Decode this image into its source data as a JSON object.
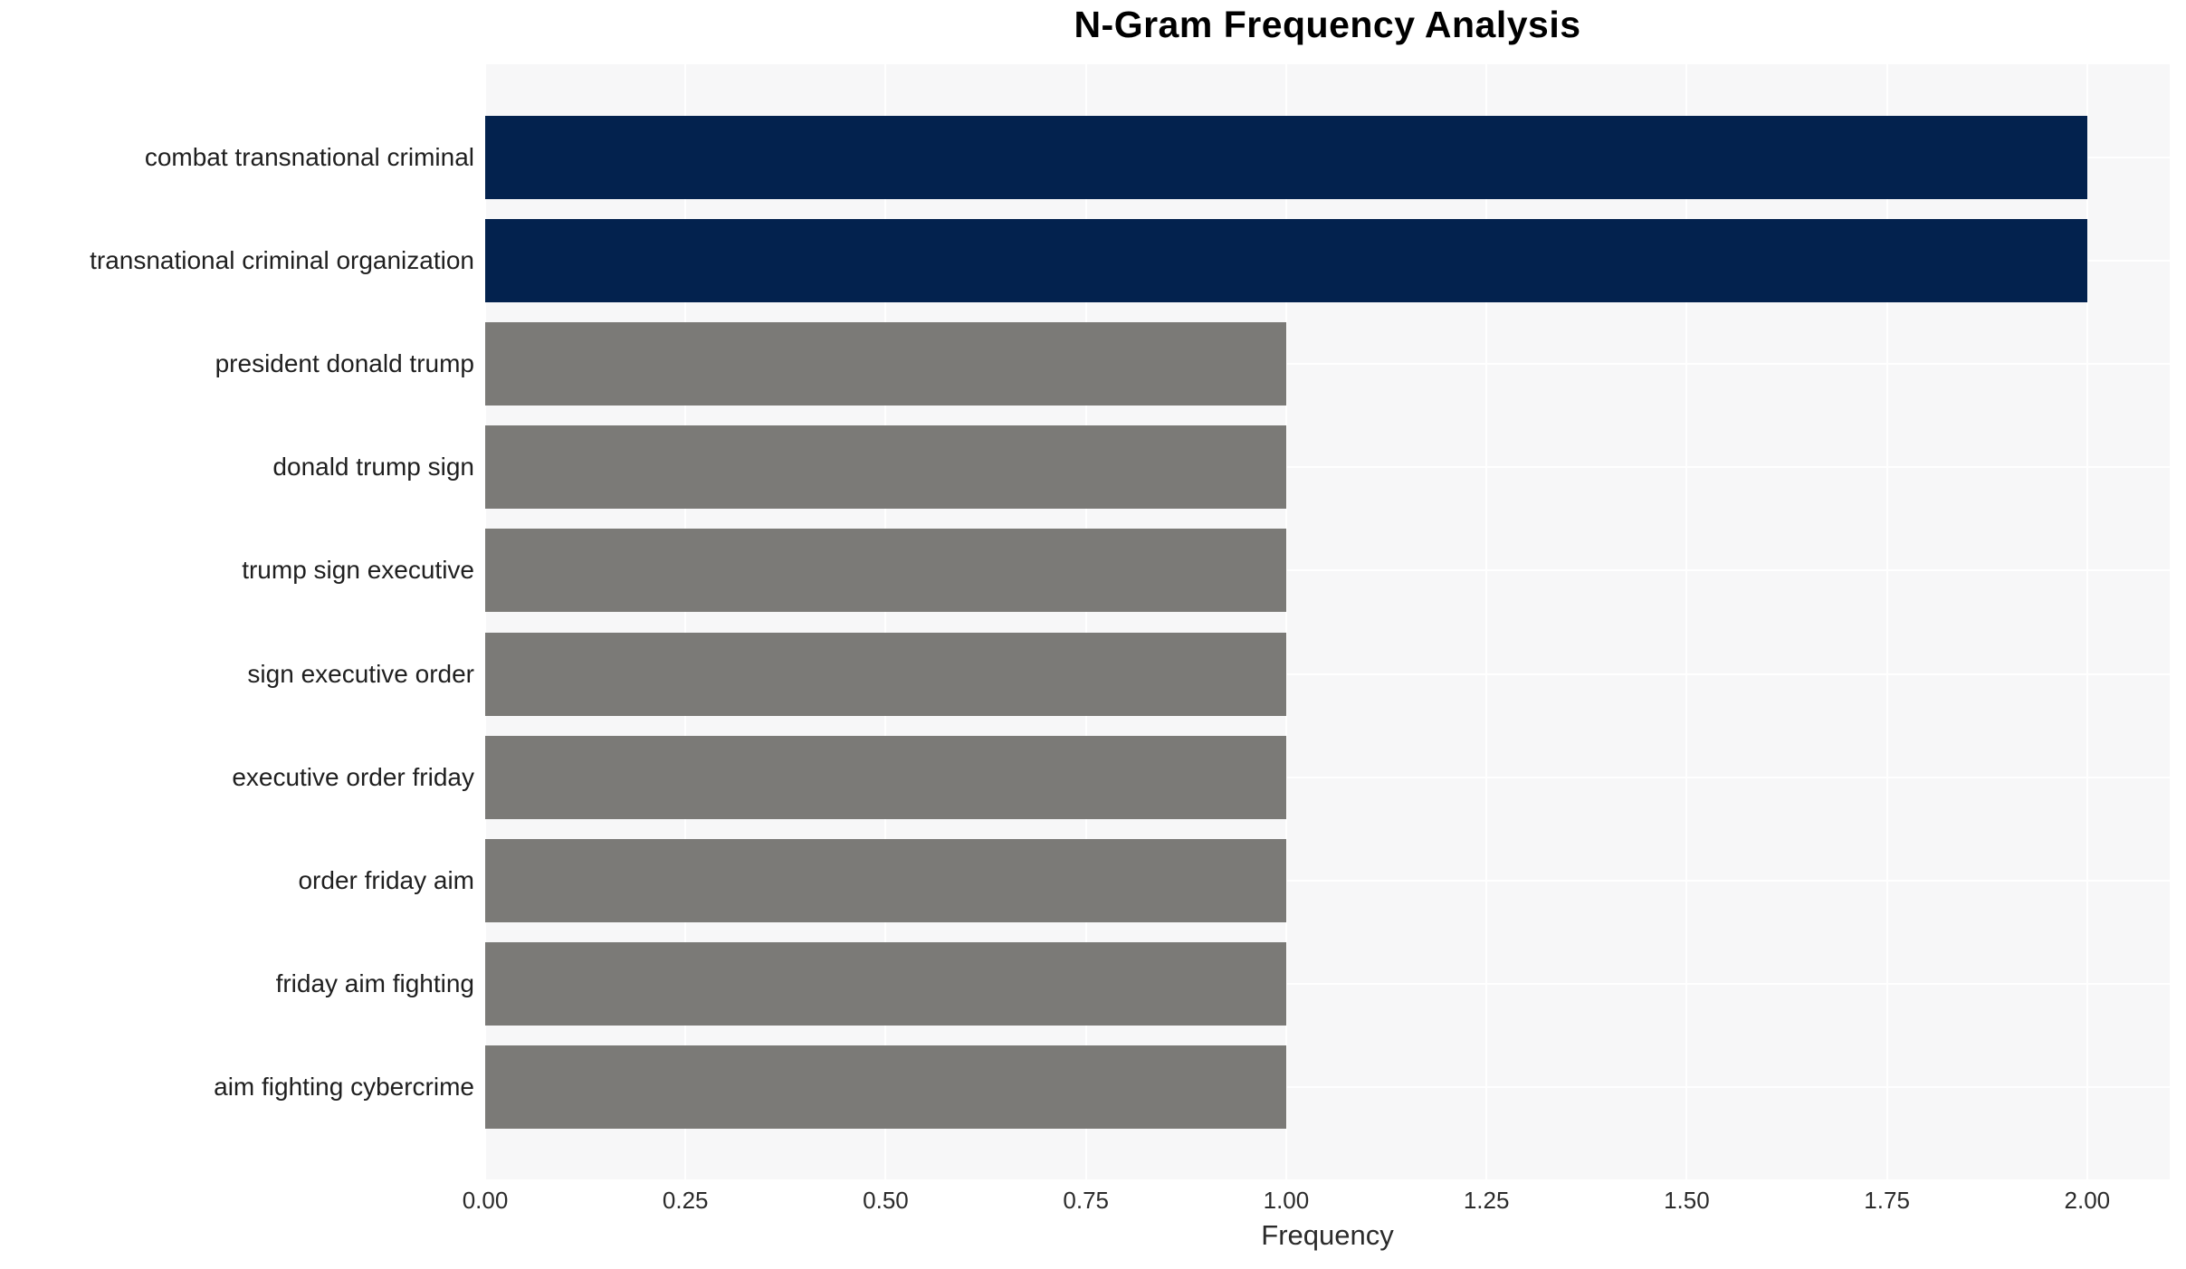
{
  "chart_data": {
    "type": "bar",
    "orientation": "horizontal",
    "title": "N-Gram Frequency Analysis",
    "xlabel": "Frequency",
    "ylabel": "",
    "categories": [
      "combat transnational criminal",
      "transnational criminal organization",
      "president donald trump",
      "donald trump sign",
      "trump sign executive",
      "sign executive order",
      "executive order friday",
      "order friday aim",
      "friday aim fighting",
      "aim fighting cybercrime"
    ],
    "values": [
      2,
      2,
      1,
      1,
      1,
      1,
      1,
      1,
      1,
      1
    ],
    "bar_colors": [
      "#03224e",
      "#03224e",
      "#7b7a77",
      "#7b7a77",
      "#7b7a77",
      "#7b7a77",
      "#7b7a77",
      "#7b7a77",
      "#7b7a77",
      "#7b7a77"
    ],
    "xticks": [
      0,
      0.25,
      0.5,
      0.75,
      1.0,
      1.25,
      1.5,
      1.75,
      2.0
    ],
    "xtick_labels": [
      "0.00",
      "0.25",
      "0.50",
      "0.75",
      "1.00",
      "1.25",
      "1.50",
      "1.75",
      "2.00"
    ],
    "xlim": [
      0,
      2.103
    ],
    "grid": true,
    "legend_position": "none",
    "colors": {
      "highlight_bar": "#03224e",
      "default_bar": "#7b7a77",
      "plot_background": "#f7f7f8",
      "gridline": "#ffffff",
      "title_text": "#000000",
      "axis_text": "#2b2b2b"
    }
  }
}
